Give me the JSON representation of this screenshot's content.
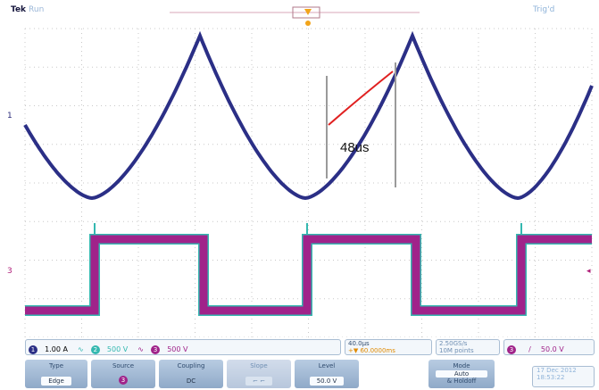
{
  "header": {
    "brand": "Tek",
    "run_state": "Run",
    "trigger_status": "Trig'd"
  },
  "annotation": {
    "label": "48us"
  },
  "markers": {
    "ch1": "1",
    "ch3": "3"
  },
  "readout": {
    "ch1_scale": "1.00 A",
    "ch2_scale": "500 V",
    "ch3_scale": "500 V",
    "ch1_badge": "1",
    "ch2_badge": "2",
    "ch3_badge": "3",
    "timebase": "40.0µs",
    "delay": "+▼ 60.0000ms",
    "sample_rate": "2.50GS/s",
    "record_length": "10M points",
    "trigger_source_badge": "3",
    "trigger_slope": "/",
    "trigger_level": "50.0 V"
  },
  "menu": {
    "type_label": "Type",
    "type_value": "Edge",
    "source_label": "Source",
    "source_value": "3",
    "coupling_label": "Coupling",
    "coupling_value": "DC",
    "slope_label": "Slope",
    "level_label": "Level",
    "level_value": "50.0 V",
    "mode_label": "Mode",
    "mode_value": "Auto",
    "mode_sub": "& Holdoff",
    "date": "17 Dec  2012",
    "time": "18:53:22"
  },
  "colors": {
    "ch1": "#2b2f86",
    "ch2": "#34b8b0",
    "ch3": "#a0238a",
    "cursor": "#999999",
    "highlight": "#e02020"
  }
}
